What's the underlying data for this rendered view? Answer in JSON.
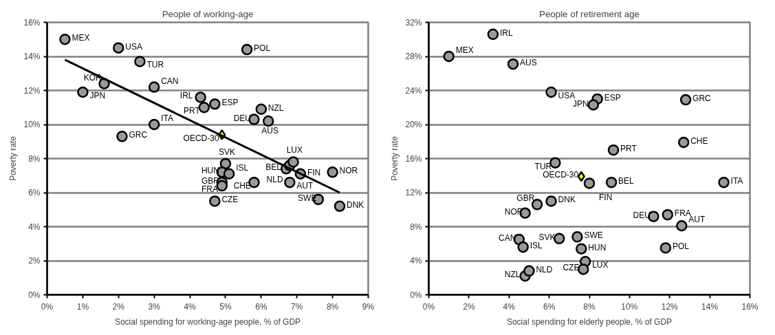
{
  "chart_data": [
    {
      "type": "scatter",
      "title": "People of working-age",
      "xlabel": "Social spending for working-age people, % of GDP",
      "ylabel": "Poverty rate",
      "xlim": [
        0,
        9
      ],
      "xticks": [
        {
          "value": 0,
          "label": "0%"
        },
        {
          "value": 1,
          "label": "1%"
        },
        {
          "value": 2,
          "label": "2%"
        },
        {
          "value": 3,
          "label": "3%"
        },
        {
          "value": 4,
          "label": "4%"
        },
        {
          "value": 5,
          "label": "5%"
        },
        {
          "value": 6,
          "label": "6%"
        },
        {
          "value": 7,
          "label": "7%"
        },
        {
          "value": 8,
          "label": "8%"
        },
        {
          "value": 9,
          "label": "9%"
        }
      ],
      "ylim": [
        0,
        16
      ],
      "yticks": [
        {
          "value": 0,
          "label": "0%"
        },
        {
          "value": 2,
          "label": "2%"
        },
        {
          "value": 4,
          "label": "4%"
        },
        {
          "value": 6,
          "label": "6%"
        },
        {
          "value": 8,
          "label": "8%"
        },
        {
          "value": 10,
          "label": "10%"
        },
        {
          "value": 12,
          "label": "12%"
        },
        {
          "value": 14,
          "label": "14%"
        },
        {
          "value": 16,
          "label": "16%"
        }
      ],
      "grid": "y",
      "series": [
        {
          "type": "scatter",
          "marker": "circle",
          "color": "#999999",
          "x": [
            0.5,
            2.0,
            2.6,
            1.0,
            1.6,
            3.0,
            3.0,
            2.1,
            4.3,
            4.7,
            4.4,
            5.6,
            6.0,
            5.8,
            6.2,
            8.0,
            6.7,
            6.8,
            6.9,
            7.1,
            6.8,
            5.8,
            7.6,
            8.2,
            4.7,
            5.0,
            4.9,
            5.1,
            4.9,
            4.9
          ],
          "values": [
            15.0,
            14.5,
            13.7,
            11.9,
            12.4,
            12.2,
            10.0,
            9.3,
            11.6,
            11.2,
            11.0,
            14.4,
            10.9,
            10.3,
            10.2,
            7.2,
            7.4,
            7.6,
            7.8,
            7.1,
            6.6,
            6.6,
            5.6,
            5.2,
            5.5,
            7.7,
            7.2,
            7.1,
            6.6,
            6.4
          ]
        },
        {
          "type": "scatter",
          "name": "OECD-30",
          "marker": "diamond",
          "color": "#ffff00",
          "x": [
            4.9
          ],
          "values": [
            9.4
          ]
        },
        {
          "type": "line",
          "line_style": "solid",
          "color": "#000000",
          "x": [
            0.5,
            8.2
          ],
          "values": [
            13.8,
            6.0
          ]
        }
      ],
      "annotations": [
        {
          "text": "MEX",
          "x": 0.5,
          "y": 15.0
        },
        {
          "text": "USA",
          "x": 2.0,
          "y": 14.5
        },
        {
          "text": "TUR",
          "x": 2.6,
          "y": 13.7
        },
        {
          "text": "JPN",
          "x": 1.0,
          "y": 11.9
        },
        {
          "text": "KOR",
          "x": 1.6,
          "y": 12.4
        },
        {
          "text": "CAN",
          "x": 3.0,
          "y": 12.2
        },
        {
          "text": "ITA",
          "x": 3.0,
          "y": 10.0
        },
        {
          "text": "GRC",
          "x": 2.1,
          "y": 9.3
        },
        {
          "text": "IRL",
          "x": 4.3,
          "y": 11.6
        },
        {
          "text": "ESP",
          "x": 4.7,
          "y": 11.2
        },
        {
          "text": "PRT",
          "x": 4.4,
          "y": 11.0
        },
        {
          "text": "POL",
          "x": 5.6,
          "y": 14.4
        },
        {
          "text": "NZL",
          "x": 6.0,
          "y": 10.9
        },
        {
          "text": "DEU",
          "x": 5.8,
          "y": 10.3
        },
        {
          "text": "AUS",
          "x": 6.2,
          "y": 10.2
        },
        {
          "text": "NOR",
          "x": 8.0,
          "y": 7.2
        },
        {
          "text": "BEL",
          "x": 6.7,
          "y": 7.4
        },
        {
          "text": "NLD",
          "x": 6.8,
          "y": 7.6
        },
        {
          "text": "LUX",
          "x": 6.9,
          "y": 7.8
        },
        {
          "text": "FIN",
          "x": 7.1,
          "y": 7.1
        },
        {
          "text": "AUT",
          "x": 6.8,
          "y": 6.6
        },
        {
          "text": "CHE",
          "x": 5.8,
          "y": 6.6
        },
        {
          "text": "SWE",
          "x": 7.6,
          "y": 5.6
        },
        {
          "text": "DNK",
          "x": 8.2,
          "y": 5.2
        },
        {
          "text": "CZE",
          "x": 4.7,
          "y": 5.5
        },
        {
          "text": "SVK",
          "x": 5.0,
          "y": 7.7
        },
        {
          "text": "HUN",
          "x": 4.9,
          "y": 7.2
        },
        {
          "text": "ISL",
          "x": 5.1,
          "y": 7.1
        },
        {
          "text": "GBR",
          "x": 4.9,
          "y": 6.6
        },
        {
          "text": "FRA",
          "x": 4.9,
          "y": 6.4
        }
      ]
    },
    {
      "type": "scatter",
      "title": "People of retirement age",
      "xlabel": "Social spending for elderly people, % of GDP",
      "ylabel": "Poverty rate",
      "xlim": [
        0,
        16
      ],
      "xticks": [
        {
          "value": 0,
          "label": "0%"
        },
        {
          "value": 2,
          "label": "2%"
        },
        {
          "value": 4,
          "label": "4%"
        },
        {
          "value": 6,
          "label": "6%"
        },
        {
          "value": 8,
          "label": "8%"
        },
        {
          "value": 10,
          "label": "10%"
        },
        {
          "value": 12,
          "label": "12%"
        },
        {
          "value": 14,
          "label": "14%"
        },
        {
          "value": 16,
          "label": "16%"
        }
      ],
      "ylim": [
        0,
        32
      ],
      "yticks": [
        {
          "value": 0,
          "label": "0%"
        },
        {
          "value": 4,
          "label": "4%"
        },
        {
          "value": 8,
          "label": "8%"
        },
        {
          "value": 12,
          "label": "12%"
        },
        {
          "value": 16,
          "label": "16%"
        },
        {
          "value": 20,
          "label": "20%"
        },
        {
          "value": 24,
          "label": "24%"
        },
        {
          "value": 28,
          "label": "28%"
        },
        {
          "value": 32,
          "label": "32%"
        }
      ],
      "grid": "y",
      "series": [
        {
          "type": "scatter",
          "marker": "circle",
          "color": "#999999",
          "x": [
            3.2,
            1.0,
            4.2,
            6.1,
            6.3,
            5.4,
            6.1,
            4.8,
            4.5,
            4.7,
            6.5,
            4.8,
            5.0,
            8.4,
            8.2,
            12.8,
            12.7,
            9.2,
            8.0,
            9.1,
            14.7,
            11.2,
            11.9,
            12.6,
            7.4,
            7.6,
            11.8,
            7.8,
            7.7
          ],
          "values": [
            30.6,
            28.0,
            27.1,
            23.8,
            15.5,
            10.6,
            11.0,
            9.6,
            6.5,
            5.6,
            6.6,
            2.2,
            2.8,
            23.0,
            22.3,
            22.9,
            17.9,
            17.0,
            13.1,
            13.2,
            13.2,
            9.2,
            9.4,
            8.1,
            6.8,
            5.4,
            5.5,
            3.9,
            3.0
          ]
        },
        {
          "type": "scatter",
          "name": "OECD-30",
          "marker": "diamond",
          "color": "#ffff00",
          "x": [
            7.6
          ],
          "values": [
            13.9
          ]
        }
      ],
      "annotations": [
        {
          "text": "IRL",
          "x": 3.2,
          "y": 30.6
        },
        {
          "text": "MEX",
          "x": 1.0,
          "y": 28.0
        },
        {
          "text": "AUS",
          "x": 4.2,
          "y": 27.1
        },
        {
          "text": "USA",
          "x": 6.1,
          "y": 23.8
        },
        {
          "text": "TUR",
          "x": 6.3,
          "y": 15.5
        },
        {
          "text": "GBR",
          "x": 5.4,
          "y": 10.6
        },
        {
          "text": "DNK",
          "x": 6.1,
          "y": 11.0
        },
        {
          "text": "NOR",
          "x": 4.8,
          "y": 9.6
        },
        {
          "text": "CAN",
          "x": 4.5,
          "y": 6.5
        },
        {
          "text": "ISL",
          "x": 4.7,
          "y": 5.6
        },
        {
          "text": "SVK",
          "x": 6.5,
          "y": 6.6
        },
        {
          "text": "NZL",
          "x": 4.8,
          "y": 2.2
        },
        {
          "text": "NLD",
          "x": 5.0,
          "y": 2.8
        },
        {
          "text": "ESP",
          "x": 8.4,
          "y": 23.0
        },
        {
          "text": "JPN",
          "x": 8.2,
          "y": 22.3
        },
        {
          "text": "GRC",
          "x": 12.8,
          "y": 22.9
        },
        {
          "text": "CHE",
          "x": 12.7,
          "y": 17.9
        },
        {
          "text": "PRT",
          "x": 9.2,
          "y": 17.0
        },
        {
          "text": "FIN",
          "x": 8.0,
          "y": 13.1
        },
        {
          "text": "BEL",
          "x": 9.1,
          "y": 13.2
        },
        {
          "text": "ITA",
          "x": 14.7,
          "y": 13.2
        },
        {
          "text": "DEU",
          "x": 11.2,
          "y": 9.2
        },
        {
          "text": "FRA",
          "x": 11.9,
          "y": 9.4
        },
        {
          "text": "AUT",
          "x": 12.6,
          "y": 8.1
        },
        {
          "text": "SWE",
          "x": 7.4,
          "y": 6.8
        },
        {
          "text": "HUN",
          "x": 7.6,
          "y": 5.4
        },
        {
          "text": "POL",
          "x": 11.8,
          "y": 5.5
        },
        {
          "text": "LUX",
          "x": 7.8,
          "y": 3.9
        },
        {
          "text": "CZE",
          "x": 7.7,
          "y": 3.0
        }
      ]
    }
  ]
}
